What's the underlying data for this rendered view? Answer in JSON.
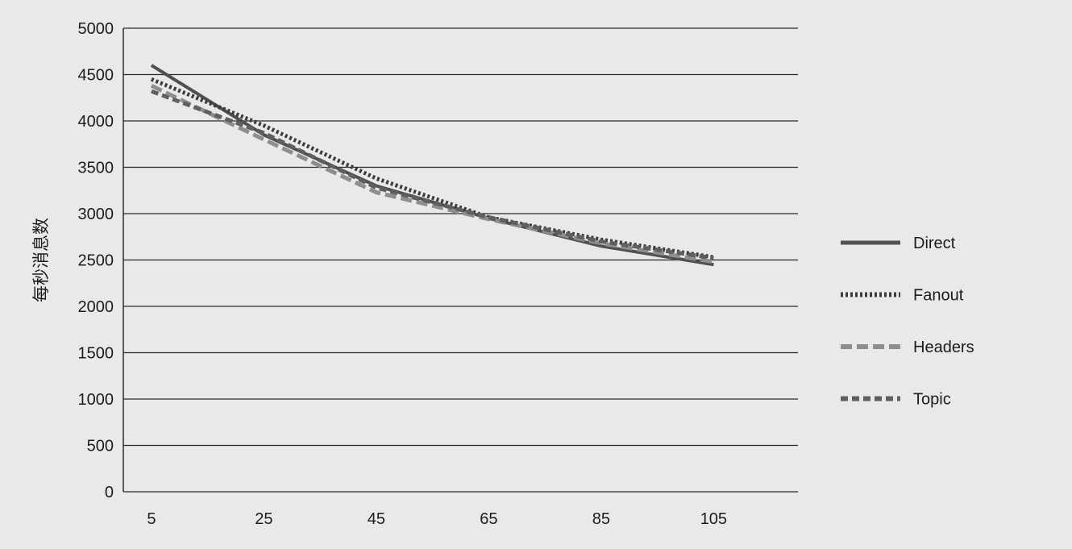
{
  "chart_data": {
    "type": "line",
    "title": "",
    "xlabel": "",
    "ylabel": "每秒消息数",
    "x": [
      5,
      25,
      45,
      65,
      85,
      105
    ],
    "ylim": [
      0,
      5000
    ],
    "yticks": [
      0,
      500,
      1000,
      1500,
      2000,
      2500,
      3000,
      3500,
      4000,
      4500,
      5000
    ],
    "grid": "horizontal",
    "legend_position": "right",
    "series": [
      {
        "name": "Direct",
        "values": [
          4600,
          3850,
          3300,
          2950,
          2650,
          2450
        ],
        "style": "solid",
        "color": "#505050"
      },
      {
        "name": "Fanout",
        "values": [
          4450,
          3950,
          3380,
          2960,
          2720,
          2530
        ],
        "style": "dotted",
        "color": "#3c3c3c"
      },
      {
        "name": "Headers",
        "values": [
          4380,
          3800,
          3230,
          2940,
          2680,
          2480
        ],
        "style": "dashed",
        "color": "#8e8e8e"
      },
      {
        "name": "Topic",
        "values": [
          4320,
          3870,
          3280,
          2960,
          2700,
          2520
        ],
        "style": "dashed-short",
        "color": "#5f5f5f"
      }
    ]
  }
}
